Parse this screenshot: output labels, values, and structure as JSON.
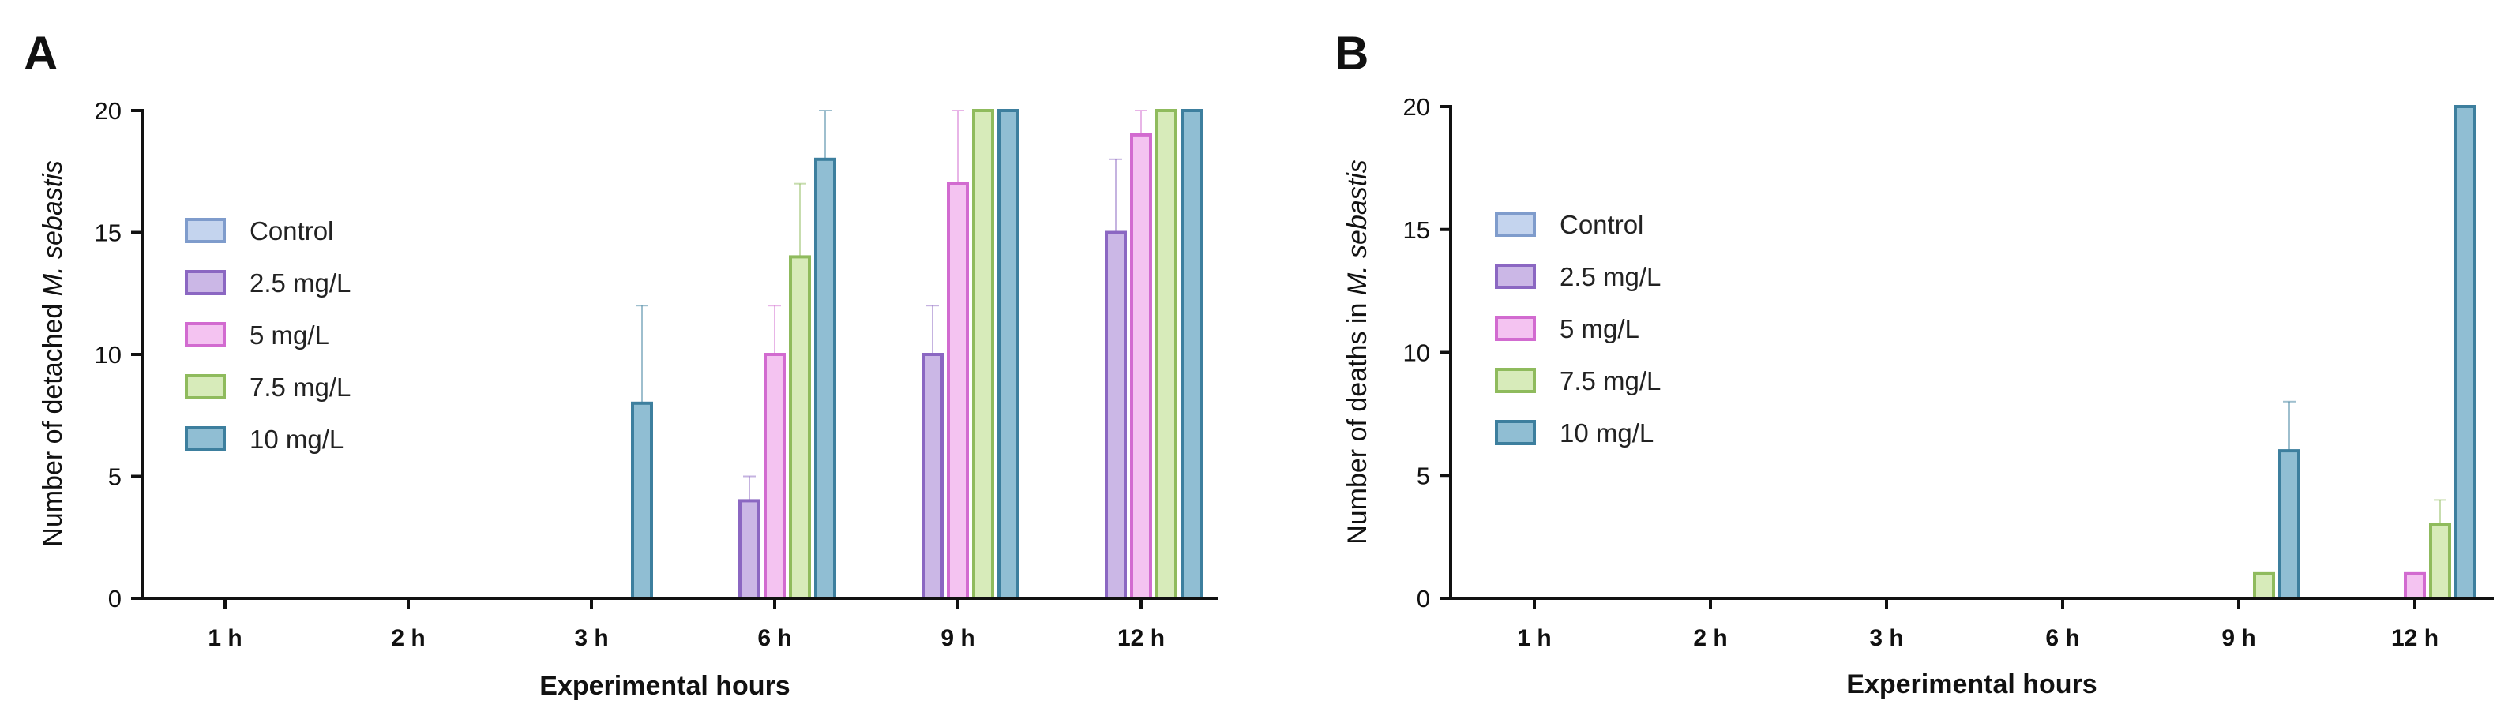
{
  "series_names": [
    "Control",
    "2.5 mg/L",
    "5 mg/L",
    "7.5 mg/L",
    "10 mg/L"
  ],
  "series_style": [
    {
      "fill": "#c4d4ee",
      "stroke": "#7f9ccc"
    },
    {
      "fill": "#cbb7e6",
      "stroke": "#8b67c2"
    },
    {
      "fill": "#f4c3f1",
      "stroke": "#d26bd0"
    },
    {
      "fill": "#d7ebba",
      "stroke": "#8fbb5d"
    },
    {
      "fill": "#90bed3",
      "stroke": "#3d7f9e"
    }
  ],
  "chart_data": [
    {
      "panel": "A",
      "type": "bar",
      "title": "",
      "xlabel": "Experimental hours",
      "ylabel_prefix": "Number of detached ",
      "ylabel_italic": "M. sebastis",
      "ylim": [
        0,
        20
      ],
      "yticks": [
        0,
        5,
        10,
        15,
        20
      ],
      "grid": false,
      "legend": "left",
      "categories": [
        "1 h",
        "2 h",
        "3 h",
        "6 h",
        "9 h",
        "12 h"
      ],
      "series": [
        {
          "name": "Control",
          "values": [
            0,
            0,
            0,
            0,
            0,
            0
          ],
          "errors": [
            0,
            0,
            0,
            0,
            0,
            0
          ]
        },
        {
          "name": "2.5 mg/L",
          "values": [
            0,
            0,
            0,
            4,
            10,
            15
          ],
          "errors": [
            0,
            0,
            0,
            1,
            2,
            3
          ]
        },
        {
          "name": "5 mg/L",
          "values": [
            0,
            0,
            0,
            10,
            17,
            19
          ],
          "errors": [
            0,
            0,
            0,
            2,
            3,
            1
          ]
        },
        {
          "name": "7.5 mg/L",
          "values": [
            0,
            0,
            0,
            14,
            20,
            20
          ],
          "errors": [
            0,
            0,
            0,
            3,
            0,
            0
          ]
        },
        {
          "name": "10 mg/L",
          "values": [
            0,
            0,
            8,
            18,
            20,
            20
          ],
          "errors": [
            0,
            0,
            4,
            2,
            0,
            0
          ]
        }
      ]
    },
    {
      "panel": "B",
      "type": "bar",
      "title": "",
      "xlabel": "Experimental hours",
      "ylabel_prefix": "Number of deaths in ",
      "ylabel_italic": "M. sebastis",
      "ylim": [
        0,
        20
      ],
      "yticks": [
        0,
        5,
        10,
        15,
        20
      ],
      "grid": false,
      "legend": "left",
      "categories": [
        "1 h",
        "2 h",
        "3 h",
        "6 h",
        "9 h",
        "12 h"
      ],
      "series": [
        {
          "name": "Control",
          "values": [
            0,
            0,
            0,
            0,
            0,
            0
          ],
          "errors": [
            0,
            0,
            0,
            0,
            0,
            0
          ]
        },
        {
          "name": "2.5 mg/L",
          "values": [
            0,
            0,
            0,
            0,
            0,
            0
          ],
          "errors": [
            0,
            0,
            0,
            0,
            0,
            0
          ]
        },
        {
          "name": "5 mg/L",
          "values": [
            0,
            0,
            0,
            0,
            0,
            1
          ],
          "errors": [
            0,
            0,
            0,
            0,
            0,
            0
          ]
        },
        {
          "name": "7.5 mg/L",
          "values": [
            0,
            0,
            0,
            0,
            1,
            3
          ],
          "errors": [
            0,
            0,
            0,
            0,
            0,
            1
          ]
        },
        {
          "name": "10 mg/L",
          "values": [
            0,
            0,
            0,
            0,
            6,
            20
          ],
          "errors": [
            0,
            0,
            0,
            0,
            2,
            0
          ]
        }
      ]
    }
  ]
}
